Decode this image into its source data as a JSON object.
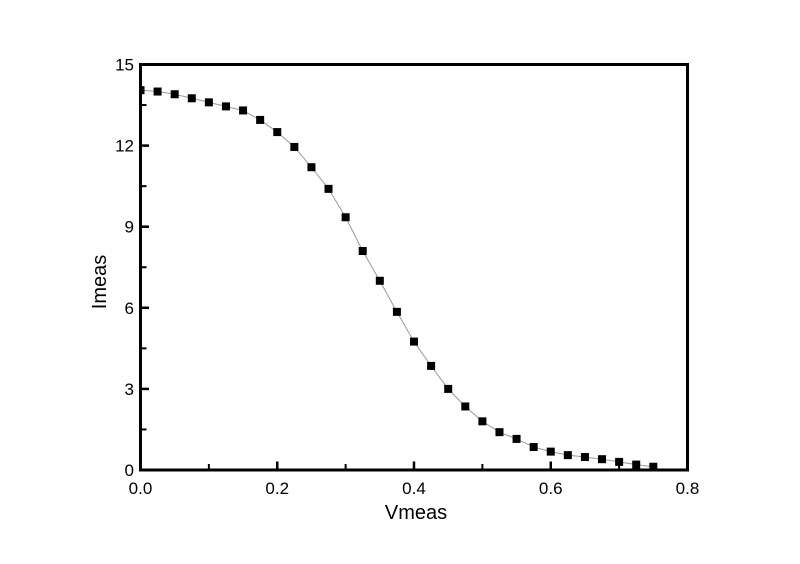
{
  "figure": {
    "background": "#ffffff"
  },
  "chart_data": {
    "type": "line",
    "title": "",
    "xlabel": "Vmeas",
    "ylabel": "Imeas",
    "xlim": [
      0.0,
      0.8
    ],
    "ylim": [
      0,
      15
    ],
    "grid": false,
    "legend": "none",
    "frame": "box",
    "tick_direction": "in",
    "x_ticks": {
      "values": [
        0.0,
        0.2,
        0.4,
        0.6,
        0.8
      ],
      "labels": [
        "0.0",
        "0.2",
        "0.4",
        "0.6",
        "0.8"
      ],
      "minor": [
        0.1,
        0.3,
        0.5,
        0.7
      ]
    },
    "y_ticks": {
      "values": [
        0,
        3,
        6,
        9,
        12,
        15
      ],
      "labels": [
        "0",
        "3",
        "6",
        "9",
        "12",
        "15"
      ],
      "minor": [
        1.5,
        4.5,
        7.5,
        10.5,
        13.5
      ]
    },
    "series": [
      {
        "name": "Imeas vs Vmeas",
        "marker": "filled-square",
        "marker_color": "#000000",
        "marker_size": 8,
        "line_color": "#999999",
        "line_width": 1,
        "points": [
          [
            0.0,
            14.05
          ],
          [
            0.025,
            14.0
          ],
          [
            0.05,
            13.9
          ],
          [
            0.075,
            13.75
          ],
          [
            0.1,
            13.6
          ],
          [
            0.125,
            13.45
          ],
          [
            0.15,
            13.3
          ],
          [
            0.175,
            12.95
          ],
          [
            0.2,
            12.5
          ],
          [
            0.225,
            11.95
          ],
          [
            0.25,
            11.2
          ],
          [
            0.275,
            10.4
          ],
          [
            0.3,
            9.35
          ],
          [
            0.325,
            8.1
          ],
          [
            0.35,
            7.0
          ],
          [
            0.375,
            5.85
          ],
          [
            0.4,
            4.75
          ],
          [
            0.425,
            3.85
          ],
          [
            0.45,
            3.0
          ],
          [
            0.475,
            2.35
          ],
          [
            0.5,
            1.8
          ],
          [
            0.525,
            1.4
          ],
          [
            0.55,
            1.15
          ],
          [
            0.575,
            0.85
          ],
          [
            0.6,
            0.68
          ],
          [
            0.625,
            0.55
          ],
          [
            0.65,
            0.48
          ],
          [
            0.675,
            0.4
          ],
          [
            0.7,
            0.3
          ],
          [
            0.725,
            0.2
          ],
          [
            0.75,
            0.12
          ]
        ]
      }
    ],
    "colors": {
      "axis": "#000000",
      "text": "#000000",
      "marker": "#000000",
      "line": "#999999",
      "background": "#ffffff"
    }
  }
}
